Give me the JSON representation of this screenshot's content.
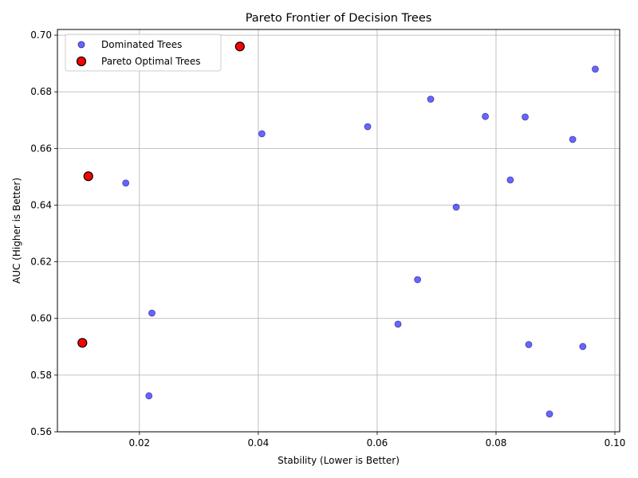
{
  "chart_data": {
    "type": "scatter",
    "title": "Pareto Frontier of Decision Trees",
    "xlabel": "Stability (Lower is Better)",
    "ylabel": "AUC (Higher is Better)",
    "xlim": [
      0.0062,
      0.1008
    ],
    "ylim": [
      0.56,
      0.702
    ],
    "xticks": [
      {
        "value": 0.02,
        "label": "0.02"
      },
      {
        "value": 0.04,
        "label": "0.04"
      },
      {
        "value": 0.06,
        "label": "0.06"
      },
      {
        "value": 0.08,
        "label": "0.08"
      },
      {
        "value": 0.1,
        "label": "0.10"
      }
    ],
    "yticks": [
      {
        "value": 0.56,
        "label": "0.56"
      },
      {
        "value": 0.58,
        "label": "0.58"
      },
      {
        "value": 0.6,
        "label": "0.60"
      },
      {
        "value": 0.62,
        "label": "0.62"
      },
      {
        "value": 0.64,
        "label": "0.64"
      },
      {
        "value": 0.66,
        "label": "0.66"
      },
      {
        "value": 0.68,
        "label": "0.68"
      },
      {
        "value": 0.7,
        "label": "0.70"
      }
    ],
    "grid": true,
    "legend_position": "top-left",
    "series": [
      {
        "name": "Dominated Trees",
        "color": "#0000ff",
        "edge_color": "#2a2a8a",
        "opacity": 0.6,
        "marker": "circle-small",
        "points": [
          {
            "x": 0.0177,
            "y": 0.6478
          },
          {
            "x": 0.0216,
            "y": 0.5727
          },
          {
            "x": 0.0221,
            "y": 0.6019
          },
          {
            "x": 0.0406,
            "y": 0.6652
          },
          {
            "x": 0.0584,
            "y": 0.6677
          },
          {
            "x": 0.0635,
            "y": 0.598
          },
          {
            "x": 0.0668,
            "y": 0.6137
          },
          {
            "x": 0.069,
            "y": 0.6774
          },
          {
            "x": 0.0733,
            "y": 0.6393
          },
          {
            "x": 0.0782,
            "y": 0.6713
          },
          {
            "x": 0.0824,
            "y": 0.6489
          },
          {
            "x": 0.0849,
            "y": 0.6711
          },
          {
            "x": 0.0855,
            "y": 0.5908
          },
          {
            "x": 0.089,
            "y": 0.5663
          },
          {
            "x": 0.0929,
            "y": 0.6632
          },
          {
            "x": 0.0946,
            "y": 0.5901
          },
          {
            "x": 0.0967,
            "y": 0.688
          }
        ]
      },
      {
        "name": "Pareto Optimal Trees",
        "color": "#ff0000",
        "edge_color": "#000000",
        "opacity": 1.0,
        "marker": "circle-large",
        "points": [
          {
            "x": 0.0104,
            "y": 0.5914
          },
          {
            "x": 0.0114,
            "y": 0.6502
          },
          {
            "x": 0.0369,
            "y": 0.696
          }
        ]
      }
    ]
  }
}
